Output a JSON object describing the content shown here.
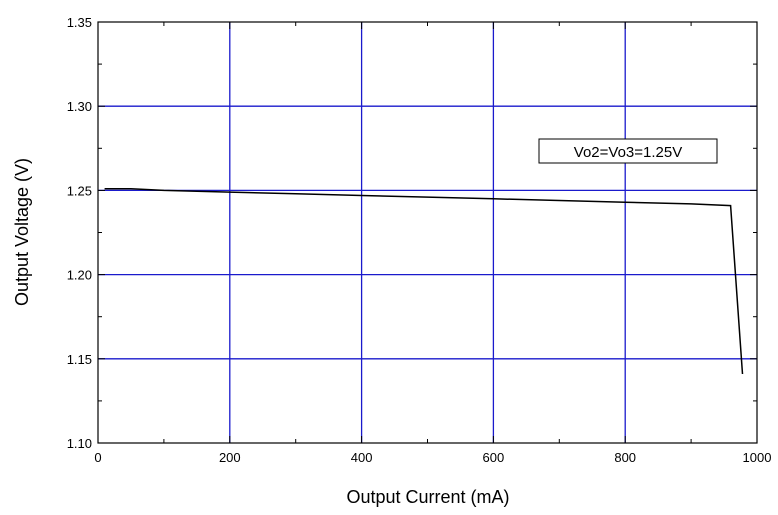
{
  "chart_data": {
    "type": "line",
    "title": "",
    "xlabel": "Output Current (mA)",
    "ylabel": "Output Voltage (V)",
    "xlim": [
      0,
      1000
    ],
    "ylim": [
      1.1,
      1.35
    ],
    "x_ticks": [
      "0",
      "200",
      "400",
      "600",
      "800",
      "1000"
    ],
    "y_ticks": [
      "1.10",
      "1.15",
      "1.20",
      "1.25",
      "1.30",
      "1.35"
    ],
    "grid": true,
    "grid_color": "#1a1acc",
    "line_color": "#000000",
    "annotation": "Vo2=Vo3=1.25V",
    "series": [
      {
        "x": [
          10,
          50,
          100,
          200,
          300,
          400,
          500,
          600,
          700,
          800,
          900,
          960,
          978
        ],
        "y": [
          1.251,
          1.251,
          1.25,
          1.249,
          1.248,
          1.247,
          1.246,
          1.245,
          1.244,
          1.243,
          1.242,
          1.241,
          1.141
        ]
      }
    ]
  }
}
